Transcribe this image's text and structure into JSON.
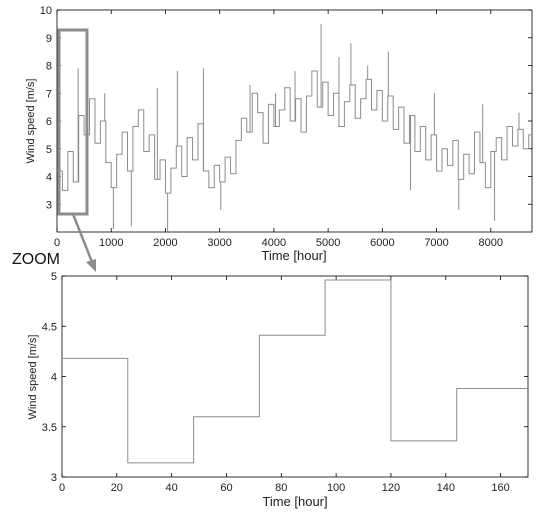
{
  "chart_data": [
    {
      "type": "line",
      "step": true,
      "xlabel": "Time [hour]",
      "ylabel": "Wind speed [m/s]",
      "xlim": [
        0,
        8760
      ],
      "ylim": [
        2,
        10
      ],
      "xticks": [
        0,
        1000,
        2000,
        3000,
        4000,
        5000,
        6000,
        7000,
        8000
      ],
      "yticks": [
        3,
        4,
        5,
        6,
        7,
        8,
        9,
        10
      ],
      "yticks_shown": [
        3,
        4,
        5,
        6,
        7,
        8,
        9,
        10
      ],
      "line_color": "#8c8c8c",
      "series": [
        {
          "values": [
            {
              "x": 0,
              "y": 4.2
            },
            {
              "x": 100,
              "y": 3.5
            },
            {
              "x": 200,
              "y": 4.9
            },
            {
              "x": 300,
              "y": 3.8
            },
            {
              "x": 400,
              "y": 6.2
            },
            {
              "x": 500,
              "y": 5.5
            },
            {
              "x": 600,
              "y": 6.8
            },
            {
              "x": 700,
              "y": 5.2
            },
            {
              "x": 800,
              "y": 6.0
            },
            {
              "x": 900,
              "y": 4.5
            },
            {
              "x": 1000,
              "y": 3.6
            },
            {
              "x": 1100,
              "y": 4.8
            },
            {
              "x": 1200,
              "y": 5.6
            },
            {
              "x": 1300,
              "y": 4.2
            },
            {
              "x": 1400,
              "y": 5.8
            },
            {
              "x": 1500,
              "y": 6.4
            },
            {
              "x": 1600,
              "y": 4.9
            },
            {
              "x": 1700,
              "y": 5.5
            },
            {
              "x": 1800,
              "y": 3.9
            },
            {
              "x": 1900,
              "y": 4.6
            },
            {
              "x": 2000,
              "y": 3.4
            },
            {
              "x": 2100,
              "y": 4.3
            },
            {
              "x": 2200,
              "y": 5.1
            },
            {
              "x": 2300,
              "y": 4.0
            },
            {
              "x": 2400,
              "y": 5.4
            },
            {
              "x": 2500,
              "y": 4.6
            },
            {
              "x": 2600,
              "y": 5.9
            },
            {
              "x": 2700,
              "y": 4.2
            },
            {
              "x": 2800,
              "y": 3.6
            },
            {
              "x": 2900,
              "y": 4.4
            },
            {
              "x": 3000,
              "y": 3.8
            },
            {
              "x": 3100,
              "y": 4.7
            },
            {
              "x": 3200,
              "y": 4.1
            },
            {
              "x": 3300,
              "y": 5.3
            },
            {
              "x": 3400,
              "y": 6.1
            },
            {
              "x": 3500,
              "y": 5.6
            },
            {
              "x": 3600,
              "y": 7.0
            },
            {
              "x": 3700,
              "y": 6.3
            },
            {
              "x": 3800,
              "y": 5.2
            },
            {
              "x": 3900,
              "y": 6.6
            },
            {
              "x": 4000,
              "y": 5.8
            },
            {
              "x": 4100,
              "y": 6.4
            },
            {
              "x": 4200,
              "y": 7.2
            },
            {
              "x": 4300,
              "y": 6.0
            },
            {
              "x": 4400,
              "y": 6.8
            },
            {
              "x": 4500,
              "y": 5.6
            },
            {
              "x": 4600,
              "y": 6.9
            },
            {
              "x": 4700,
              "y": 7.8
            },
            {
              "x": 4800,
              "y": 6.5
            },
            {
              "x": 4900,
              "y": 7.4
            },
            {
              "x": 5000,
              "y": 6.2
            },
            {
              "x": 5100,
              "y": 7.0
            },
            {
              "x": 5200,
              "y": 5.8
            },
            {
              "x": 5300,
              "y": 6.7
            },
            {
              "x": 5400,
              "y": 7.3
            },
            {
              "x": 5500,
              "y": 6.1
            },
            {
              "x": 5600,
              "y": 6.8
            },
            {
              "x": 5700,
              "y": 7.5
            },
            {
              "x": 5800,
              "y": 6.4
            },
            {
              "x": 5900,
              "y": 7.1
            },
            {
              "x": 6000,
              "y": 6.0
            },
            {
              "x": 6100,
              "y": 6.9
            },
            {
              "x": 6200,
              "y": 5.7
            },
            {
              "x": 6300,
              "y": 6.5
            },
            {
              "x": 6400,
              "y": 5.2
            },
            {
              "x": 6500,
              "y": 6.2
            },
            {
              "x": 6600,
              "y": 4.9
            },
            {
              "x": 6700,
              "y": 5.8
            },
            {
              "x": 6800,
              "y": 4.6
            },
            {
              "x": 6900,
              "y": 5.5
            },
            {
              "x": 7000,
              "y": 4.2
            },
            {
              "x": 7100,
              "y": 5.0
            },
            {
              "x": 7200,
              "y": 4.4
            },
            {
              "x": 7300,
              "y": 5.3
            },
            {
              "x": 7400,
              "y": 3.9
            },
            {
              "x": 7500,
              "y": 4.8
            },
            {
              "x": 7600,
              "y": 4.1
            },
            {
              "x": 7700,
              "y": 5.6
            },
            {
              "x": 7800,
              "y": 4.5
            },
            {
              "x": 7900,
              "y": 3.6
            },
            {
              "x": 8000,
              "y": 4.9
            },
            {
              "x": 8100,
              "y": 5.4
            },
            {
              "x": 8200,
              "y": 4.6
            },
            {
              "x": 8300,
              "y": 5.8
            },
            {
              "x": 8400,
              "y": 5.1
            },
            {
              "x": 8500,
              "y": 5.7
            },
            {
              "x": 8600,
              "y": 5.0
            },
            {
              "x": 8700,
              "y": 5.5
            }
          ]
        }
      ],
      "spikes": [
        {
          "x": 50,
          "y": 6.5
        },
        {
          "x": 390,
          "y": 7.9
        },
        {
          "x": 880,
          "y": 7.0
        },
        {
          "x": 1040,
          "y": 2.1
        },
        {
          "x": 1370,
          "y": 2.2
        },
        {
          "x": 1850,
          "y": 7.2
        },
        {
          "x": 2040,
          "y": 2.0
        },
        {
          "x": 2220,
          "y": 7.8
        },
        {
          "x": 2700,
          "y": 7.9
        },
        {
          "x": 3020,
          "y": 2.8
        },
        {
          "x": 3560,
          "y": 7.3
        },
        {
          "x": 4030,
          "y": 7.0
        },
        {
          "x": 4390,
          "y": 7.8
        },
        {
          "x": 4870,
          "y": 9.5
        },
        {
          "x": 5200,
          "y": 8.3
        },
        {
          "x": 5420,
          "y": 8.8
        },
        {
          "x": 5730,
          "y": 8.0
        },
        {
          "x": 6110,
          "y": 8.5
        },
        {
          "x": 6520,
          "y": 3.5
        },
        {
          "x": 6960,
          "y": 7.0
        },
        {
          "x": 7410,
          "y": 2.8
        },
        {
          "x": 7850,
          "y": 6.6
        },
        {
          "x": 8070,
          "y": 2.4
        },
        {
          "x": 8520,
          "y": 6.3
        }
      ]
    },
    {
      "type": "line",
      "step": true,
      "xlabel": "Time [hour]",
      "ylabel": "Wind speed [m/s]",
      "xlim": [
        0,
        170
      ],
      "ylim": [
        3,
        5
      ],
      "xticks": [
        0,
        20,
        40,
        60,
        80,
        100,
        120,
        140,
        160
      ],
      "yticks": [
        3,
        3.5,
        4,
        4.5,
        5
      ],
      "line_color": "#8c8c8c",
      "series": [
        {
          "values": [
            {
              "x": 0,
              "y": 4.18
            },
            {
              "x": 24,
              "y": 3.14
            },
            {
              "x": 48,
              "y": 3.6
            },
            {
              "x": 72,
              "y": 4.41
            },
            {
              "x": 96,
              "y": 4.96
            },
            {
              "x": 120,
              "y": 3.36
            },
            {
              "x": 144,
              "y": 3.88
            },
            {
              "x": 170,
              "y": 3.88
            }
          ]
        }
      ]
    }
  ],
  "annotation": {
    "label": "ZOOM",
    "box_color": "#8c8c8c"
  }
}
